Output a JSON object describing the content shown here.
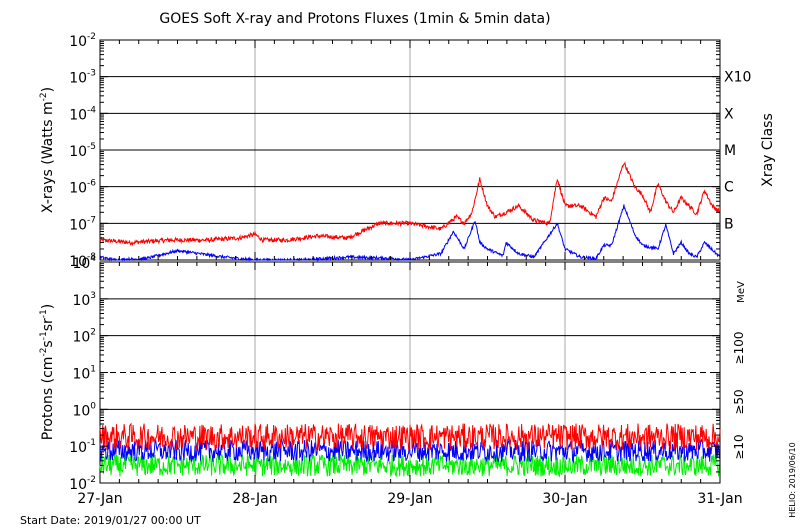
{
  "chart_data": [
    {
      "type": "line",
      "title": "GOES Soft X-ray and Protons Fluxes   (1min & 5min data)",
      "ylabel": "X-rays (Watts m",
      "ylabel_sup": "-2",
      "ylabel_close": ")",
      "yscale": "log",
      "ylim": [
        1e-08,
        0.01
      ],
      "ytick_exponents": [
        -2,
        -3,
        -4,
        -5,
        -6,
        -7,
        -8
      ],
      "xlim_days": [
        0,
        4
      ],
      "xtick_labels": [
        "27-Jan",
        "28-Jan",
        "29-Jan",
        "30-Jan",
        "31-Jan"
      ],
      "right_axis_label": "Xray Class",
      "class_labels": [
        {
          "label": "X10",
          "value": 0.001
        },
        {
          "label": "X",
          "value": 0.0001
        },
        {
          "label": "M",
          "value": 1e-05
        },
        {
          "label": "C",
          "value": 1e-06
        },
        {
          "label": "B",
          "value": 1e-07
        }
      ],
      "series": [
        {
          "color": "#ff0000",
          "x": [
            0,
            0.2,
            0.45,
            0.7,
            0.9,
            1.0,
            1.05,
            1.2,
            1.4,
            1.6,
            1.8,
            2.0,
            2.2,
            2.3,
            2.35,
            2.4,
            2.45,
            2.5,
            2.55,
            2.62,
            2.7,
            2.8,
            2.9,
            2.95,
            3.0,
            3.1,
            3.2,
            3.25,
            3.3,
            3.38,
            3.45,
            3.5,
            3.55,
            3.6,
            3.65,
            3.7,
            3.75,
            3.8,
            3.85,
            3.9,
            3.95,
            4.0
          ],
          "y": [
            3.5e-08,
            3e-08,
            3.5e-08,
            3.5e-08,
            4e-08,
            5e-08,
            3.5e-08,
            3.5e-08,
            4.5e-08,
            4e-08,
            1e-07,
            1e-07,
            7e-08,
            1.5e-07,
            1e-07,
            2e-07,
            1.6e-06,
            3e-07,
            1.5e-07,
            2e-07,
            3e-07,
            1.2e-07,
            1e-07,
            1.7e-06,
            3e-07,
            3e-07,
            1.5e-07,
            5e-07,
            4e-07,
            4.6e-06,
            1e-06,
            6e-07,
            2e-07,
            1.2e-06,
            4e-07,
            2e-07,
            5e-07,
            3e-07,
            1.8e-07,
            8e-07,
            3e-07,
            2e-07
          ]
        },
        {
          "color": "#0000ff",
          "x": [
            0,
            0.1,
            0.3,
            0.5,
            0.8,
            1.0,
            1.3,
            1.6,
            1.9,
            2.0,
            2.2,
            2.28,
            2.35,
            2.42,
            2.45,
            2.5,
            2.6,
            2.62,
            2.7,
            2.8,
            2.95,
            3.0,
            3.1,
            3.2,
            3.25,
            3.3,
            3.38,
            3.45,
            3.5,
            3.6,
            3.65,
            3.7,
            3.75,
            3.8,
            3.85,
            3.9,
            4.0
          ],
          "y": [
            1.2e-08,
            1e-08,
            1.1e-08,
            1.8e-08,
            1.2e-08,
            1e-08,
            1e-08,
            1.2e-08,
            1.1e-08,
            1e-08,
            1.5e-08,
            6e-08,
            2e-08,
            1.2e-07,
            3e-08,
            2e-08,
            1.3e-08,
            3e-08,
            1.5e-08,
            1.2e-08,
            1e-07,
            2e-08,
            1.2e-08,
            1.1e-08,
            2.5e-08,
            2.5e-08,
            3e-07,
            5e-08,
            2.5e-08,
            2e-08,
            9e-08,
            1.5e-08,
            3e-08,
            1.5e-08,
            1.2e-08,
            3e-08,
            1.2e-08
          ]
        }
      ]
    },
    {
      "type": "line",
      "ylabel": "Protons (cm",
      "ylabel_sup1": "-2",
      "ylabel_mid": "s",
      "ylabel_sup2": "-1",
      "ylabel_mid2": "sr",
      "ylabel_sup3": "-1",
      "ylabel_close": ")",
      "yscale": "log",
      "ylim": [
        0.01,
        10000
      ],
      "ytick_labels": [
        {
          "base": "10",
          "exp": "4"
        },
        {
          "base": "10",
          "exp": "3"
        },
        {
          "base": "10",
          "exp": "2"
        },
        {
          "base": "10",
          "exp": "1"
        },
        {
          "base": "10",
          "exp": "0"
        },
        {
          "base": "10",
          "exp": "-1"
        },
        {
          "base": "10",
          "exp": "-2"
        }
      ],
      "dashed_threshold": 10,
      "unit_label": "MeV",
      "energy_labels": [
        {
          "label": "≥100",
          "color": "#00dd00"
        },
        {
          "label": "≥50",
          "color": "#0000ff"
        },
        {
          "label": "≥10",
          "color": "#ff0000"
        }
      ],
      "series": [
        {
          "name": "≥10",
          "color": "#ff0000",
          "level": 0.18,
          "spread": 0.12
        },
        {
          "name": "≥50",
          "color": "#0000ff",
          "level": 0.075,
          "spread": 0.1
        },
        {
          "name": "≥100",
          "color": "#00ee00",
          "level": 0.03,
          "spread": 0.1
        }
      ]
    }
  ],
  "footer": {
    "start_date": "Start Date: 2019/01/27 00:00 UT",
    "credit": "HELIO: 2019/06/10"
  }
}
